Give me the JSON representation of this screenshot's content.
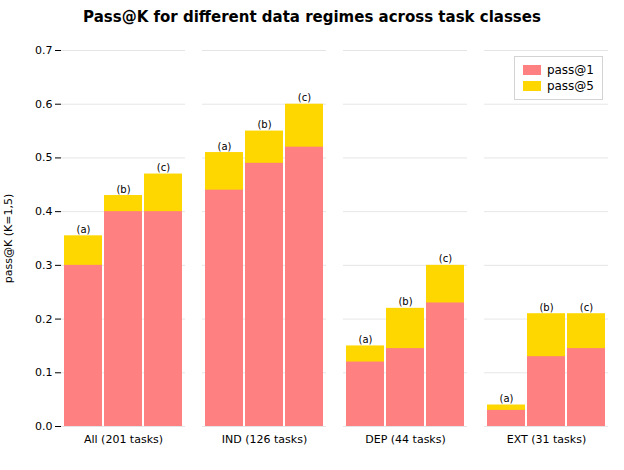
{
  "chart_data": {
    "type": "bar",
    "title": "Pass@K for different data regimes across task classes",
    "ylabel": "pass@K (K=1,5)",
    "categories": [
      "All (201 tasks)",
      "IND (126 tasks)",
      "DEP (44 tasks)",
      "EXT (31 tasks)"
    ],
    "subcategories": [
      "(a)",
      "(b)",
      "(c)"
    ],
    "series": [
      {
        "name": "pass@1",
        "color": "#FF8080",
        "values": [
          [
            0.3,
            0.4,
            0.4
          ],
          [
            0.44,
            0.49,
            0.52
          ],
          [
            0.12,
            0.145,
            0.23
          ],
          [
            0.03,
            0.13,
            0.145
          ]
        ]
      },
      {
        "name": "pass@5",
        "color": "#FFD700",
        "values": [
          [
            0.355,
            0.43,
            0.47
          ],
          [
            0.51,
            0.55,
            0.6
          ],
          [
            0.15,
            0.22,
            0.3
          ],
          [
            0.04,
            0.21,
            0.21
          ]
        ]
      }
    ],
    "ylim": [
      0.0,
      0.7
    ],
    "yticks": [
      {
        "value": 0,
        "label": "0.0"
      },
      0.1,
      0.2,
      0.3,
      0.4,
      0.5,
      0.6,
      0.7
    ],
    "grid": true,
    "legend": "upper right"
  }
}
